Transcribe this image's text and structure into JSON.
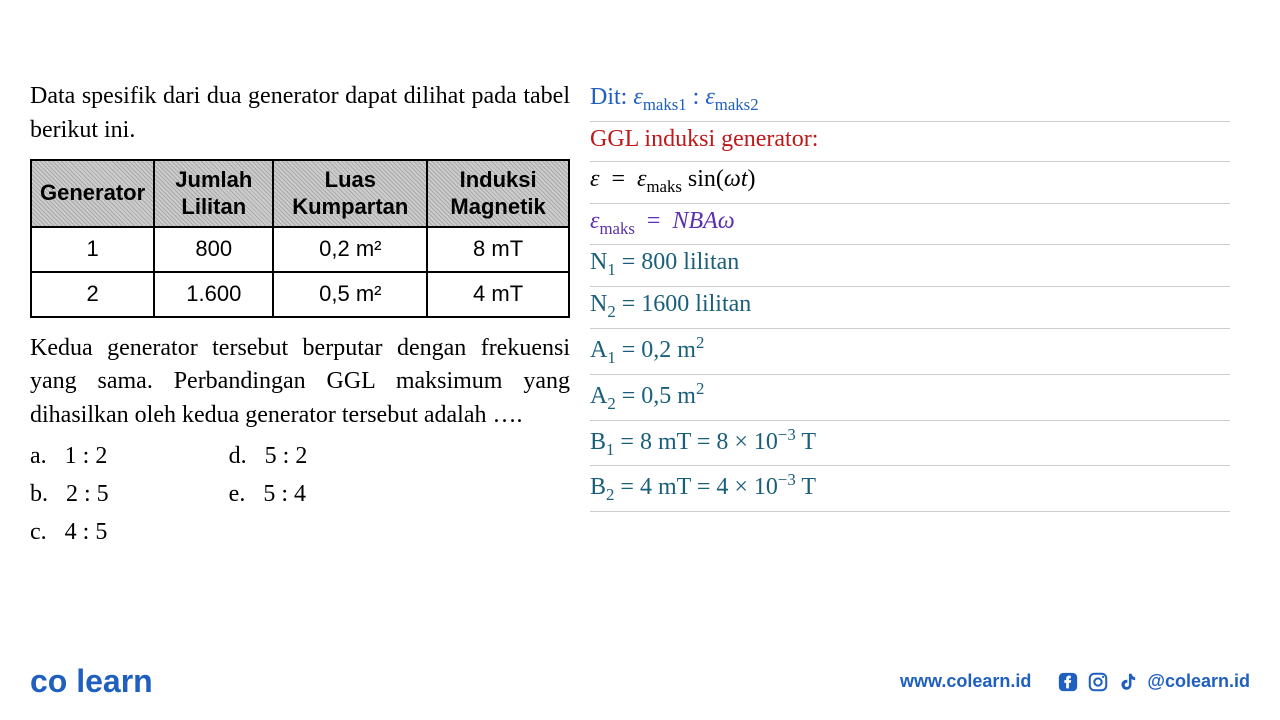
{
  "left": {
    "intro": "Data spesifik dari dua generator dapat dilihat pada tabel berikut ini.",
    "table": {
      "columns": [
        "Generator",
        "Jumlah Lilitan",
        "Luas Kumpartan",
        "Induksi Magnetik"
      ],
      "rows": [
        [
          "1",
          "800",
          "0,2 m²",
          "8 mT"
        ],
        [
          "2",
          "1.600",
          "0,5 m²",
          "4 mT"
        ]
      ],
      "border_color": "#000000",
      "header_bg": "#bbbbbb"
    },
    "question": "Kedua generator tersebut berputar dengan frekuensi yang sama. Perbandingan GGL maksimum yang dihasilkan oleh kedua generator tersebut adalah ….",
    "options": {
      "a": "1 : 2",
      "b": "2 : 5",
      "c": "4 : 5",
      "d": "5 : 2",
      "e": "5 : 4"
    }
  },
  "right": {
    "lines_html": [
      "<span class='blue'>Dit: <i>ε</i><sub>maks1</sub> : <i>ε</i><sub>maks2</sub></span>",
      "<span class='red'>GGL induksi generator:</span>",
      "<i>ε</i> &nbsp;=&nbsp; <i>ε</i><sub>maks</sub> sin(<i>ωt</i>)",
      "<span class='purple'><i>ε</i><sub>maks</sub> &nbsp;=&nbsp; <i>NBAω</i></span>",
      "<span class='teal'>N<sub>1</sub> = 800 lilitan</span>",
      "<span class='teal'>N<sub>2</sub> = 1600 lilitan</span>",
      "<span class='teal'>A<sub>1</sub> = 0,2 m<sup>2</sup></span>",
      "<span class='teal'>A<sub>2</sub> = 0,5 m<sup>2</sup></span>",
      "<span class='teal'>B<sub>1</sub> = 8 mT = 8 × 10<sup>−3</sup> T</span>",
      "<span class='teal'>B<sub>2</sub> = 4 mT = 4 × 10<sup>−3</sup> T</span>"
    ],
    "line_rule_color": "#cccccc",
    "colors": {
      "blue": "#1f5fbf",
      "red": "#c01818",
      "purple": "#5a2fb0",
      "teal": "#1a5f7a",
      "black": "#000000"
    },
    "font": "Comic Sans MS"
  },
  "footer": {
    "logo_co": "co",
    "logo_learn": "learn",
    "website": "www.colearn.id",
    "handle": "@colearn.id",
    "brand_color": "#1f5fbf",
    "accent_color": "#19c3d6"
  }
}
